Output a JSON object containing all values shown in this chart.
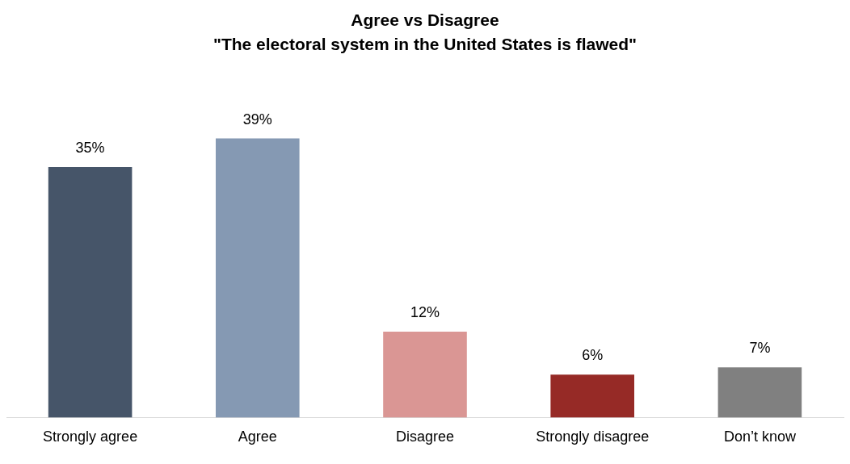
{
  "chart_data": {
    "type": "bar",
    "title": "Agree vs Disagree",
    "subtitle": "\"The electoral system in the United States is flawed\"",
    "categories": [
      "Strongly agree",
      "Agree",
      "Disagree",
      "Strongly disagree",
      "Don’t know"
    ],
    "values": [
      35,
      39,
      12,
      6,
      7
    ],
    "colors": [
      "#465569",
      "#8599b3",
      "#da9694",
      "#962a26",
      "#808080"
    ],
    "data_labels": true,
    "value_labels": [
      "35%",
      "39%",
      "12%",
      "6%",
      "7%"
    ],
    "grid": false,
    "legend": false
  }
}
